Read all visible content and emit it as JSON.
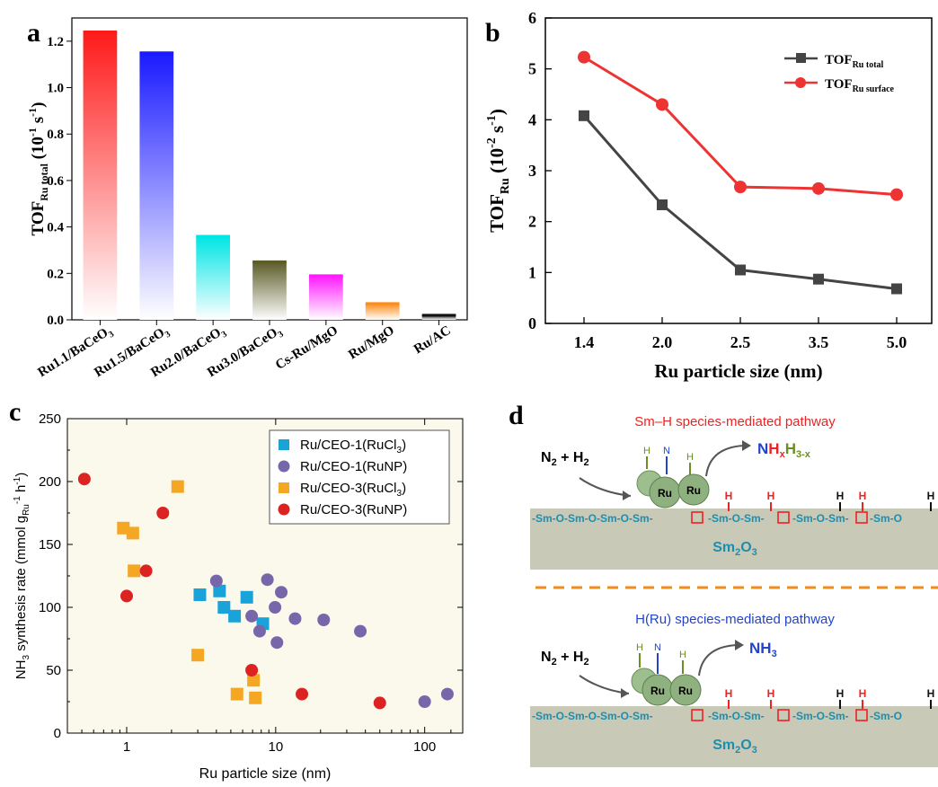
{
  "panel_labels": {
    "a": "a",
    "b": "b",
    "c": "c",
    "d": "d"
  },
  "chart_data": [
    {
      "id": "a",
      "type": "bar",
      "categories": [
        "Ru1.1/BaCeO3",
        "Ru1.5/BaCeO3",
        "Ru2.0/BaCeO3",
        "Ru3.0/BaCeO3",
        "Cs-Ru/MgO",
        "Ru/MgO",
        "Ru/AC"
      ],
      "values": [
        1.24,
        1.15,
        0.36,
        0.25,
        0.19,
        0.07,
        0.02
      ],
      "colors": [
        "#ff1a1a",
        "#1a1aff",
        "#00e5e5",
        "#5c5c28",
        "#ff1aff",
        "#ff8c1a",
        "#111111"
      ],
      "ylabel": {
        "main": "TOF",
        "sub": "Ru total",
        "unit": " (10",
        "exp": "-1",
        "unit2": " s",
        "exp2": "-1",
        "close": ")"
      },
      "ylim": [
        0,
        1.3
      ],
      "yticks": [
        0.0,
        0.2,
        0.4,
        0.6,
        0.8,
        1.0,
        1.2
      ],
      "ytick_labels": [
        "0.0",
        "0.2",
        "0.4",
        "0.6",
        "0.8",
        "1.0",
        "1.2"
      ]
    },
    {
      "id": "b",
      "type": "line",
      "categories": [
        "1.4",
        "2.0",
        "2.5",
        "3.5",
        "5.0"
      ],
      "series": [
        {
          "name_main": "TOF",
          "name_sub": "Ru total",
          "values": [
            4.08,
            2.33,
            1.05,
            0.87,
            0.68
          ],
          "color": "#444444",
          "marker": "square"
        },
        {
          "name_main": "TOF",
          "name_sub": "Ru surface",
          "values": [
            5.23,
            4.3,
            2.68,
            2.65,
            2.53
          ],
          "color": "#ee3333",
          "marker": "circle"
        }
      ],
      "xlabel": "Ru particle size (nm)",
      "ylabel": {
        "main": "TOF",
        "sub": "Ru",
        "unit": " (10",
        "exp": "-2",
        "unit2": " s",
        "exp2": "-1",
        "close": ")"
      },
      "ylim": [
        0,
        6
      ],
      "yticks": [
        0,
        1,
        2,
        3,
        4,
        5,
        6
      ],
      "ytick_labels": [
        "0",
        "1",
        "2",
        "3",
        "4",
        "5",
        "6"
      ],
      "legend": "top-right"
    },
    {
      "id": "c",
      "type": "scatter",
      "xscale": "log",
      "xlim": [
        0.4,
        180
      ],
      "ylim": [
        0,
        250
      ],
      "xticks": [
        1,
        10,
        100
      ],
      "xtick_labels": [
        "1",
        "10",
        "100"
      ],
      "yticks": [
        0,
        50,
        100,
        150,
        200,
        250
      ],
      "ytick_labels": [
        "0",
        "50",
        "100",
        "150",
        "200",
        "250"
      ],
      "xlabel": "Ru particle size (nm)",
      "ylabel": {
        "a": "NH",
        "a_sub": "3",
        "b": " synthesis rate (mmol g",
        "b_sub": "Ru",
        "b_sup": "-1",
        "c": " h",
        "c_sup": "-1",
        "d": ")"
      },
      "legend": "top-right",
      "series": [
        {
          "name_main": "Ru/CEO-1(RuCl",
          "name_sub": "3",
          "name_end": ")",
          "marker": "square",
          "color": "#1aa3d9",
          "points": [
            [
              3.1,
              110
            ],
            [
              4.2,
              113
            ],
            [
              4.5,
              100
            ],
            [
              5.3,
              93
            ],
            [
              6.4,
              108
            ],
            [
              8.2,
              87
            ]
          ]
        },
        {
          "name_main": "Ru/CEO-1(RuNP)",
          "name_sub": "",
          "name_end": "",
          "marker": "circle",
          "color": "#7766aa",
          "points": [
            [
              4.0,
              121
            ],
            [
              6.9,
              93
            ],
            [
              7.8,
              81
            ],
            [
              8.8,
              122
            ],
            [
              9.9,
              100
            ],
            [
              10.2,
              72
            ],
            [
              10.9,
              112
            ],
            [
              13.5,
              91
            ],
            [
              21,
              90
            ],
            [
              37,
              81
            ],
            [
              100,
              25
            ],
            [
              142,
              31
            ]
          ]
        },
        {
          "name_main": "Ru/CEO-3(RuCl",
          "name_sub": "3",
          "name_end": ")",
          "marker": "square",
          "color": "#f5a623",
          "points": [
            [
              0.95,
              163
            ],
            [
              1.1,
              159
            ],
            [
              1.12,
              129
            ],
            [
              2.2,
              196
            ],
            [
              3.0,
              62
            ],
            [
              5.5,
              31
            ],
            [
              7.1,
              42
            ],
            [
              7.3,
              28
            ]
          ]
        },
        {
          "name_main": "Ru/CEO-3(RuNP)",
          "name_sub": "",
          "name_end": "",
          "marker": "circle",
          "color": "#dd2222",
          "points": [
            [
              0.52,
              202
            ],
            [
              1.0,
              109
            ],
            [
              1.35,
              129
            ],
            [
              1.75,
              175
            ],
            [
              6.9,
              50
            ],
            [
              15,
              31
            ],
            [
              50,
              24
            ]
          ]
        }
      ]
    }
  ],
  "diagram_d": {
    "top_title": "Sm–H species-mediated pathway",
    "bottom_title": "H(Ru) species-mediated pathway",
    "reactant_a": "N",
    "reactant_a_sub": "2",
    "reactant_plus": " + H",
    "reactant_b_sub": "2",
    "product_top_n": "N",
    "product_top_h": "H",
    "product_top_x": "x",
    "product_top_h2": "H",
    "product_top_sub": "3-x",
    "product_bottom": "NH",
    "product_bottom_sub": "3",
    "ru_label": "Ru",
    "h_label": "H",
    "n_label": "N",
    "chain": "-Sm-O-Sm-O-Sm-O-Sm-",
    "chain_seg1": "-Sm-O-Sm-",
    "chain_seg2": "-Sm-O-Sm-",
    "chain_seg3": "-Sm-O-Sm-",
    "chain_seg4": "-Sm-O",
    "oxide": "Sm",
    "oxide_sub": "2",
    "oxide_end": "O",
    "oxide_sub2": "3"
  },
  "colors": {
    "red": "#ee2222",
    "blue": "#2244cc",
    "green": "#6b8e23",
    "teal": "#1a8fb0",
    "slab": "#c9c9b8",
    "dash": "#f08c1a"
  }
}
